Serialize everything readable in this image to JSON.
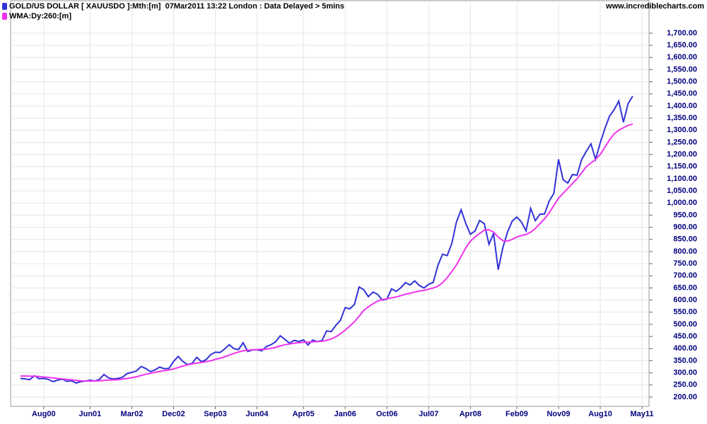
{
  "chart_data": {
    "type": "line",
    "source": "www.incrediblecharts.com",
    "categories": [
      null,
      null,
      null,
      null,
      null,
      "Aug00",
      null,
      null,
      null,
      null,
      null,
      null,
      null,
      null,
      null,
      "Jun01",
      null,
      null,
      null,
      null,
      null,
      null,
      null,
      null,
      "Mar02",
      null,
      null,
      null,
      null,
      null,
      null,
      null,
      null,
      "Dec02",
      null,
      null,
      null,
      null,
      null,
      null,
      null,
      null,
      "Sep03",
      null,
      null,
      null,
      null,
      null,
      null,
      null,
      null,
      "Jun04",
      null,
      null,
      null,
      null,
      null,
      null,
      null,
      null,
      null,
      "Apr05",
      null,
      null,
      null,
      null,
      null,
      null,
      null,
      null,
      "Jan06",
      null,
      null,
      null,
      null,
      null,
      null,
      null,
      null,
      "Oct06",
      null,
      null,
      null,
      null,
      null,
      null,
      null,
      null,
      "Jul07",
      null,
      null,
      null,
      null,
      null,
      null,
      null,
      null,
      "Apr08",
      null,
      null,
      null,
      null,
      null,
      null,
      null,
      null,
      null,
      "Feb09",
      null,
      null,
      null,
      null,
      null,
      null,
      null,
      null,
      "Nov09",
      null,
      null,
      null,
      null,
      null,
      null,
      null,
      null,
      "Aug10",
      null,
      null,
      null,
      null,
      null,
      null,
      null,
      null,
      "May11"
    ],
    "series": [
      {
        "name": "GOLD/US DOLLAR [ XAUUSDO ]:Mth:[m]  07Mar2011 13:22 London : Data Delayed > 5mins",
        "color": "#3232d8",
        "values": [
          277,
          275,
          272,
          288,
          276,
          277,
          273,
          264,
          270,
          274,
          265,
          267,
          258,
          264,
          266,
          270,
          266,
          273,
          293,
          279,
          275,
          277,
          282,
          297,
          302,
          308,
          326,
          318,
          305,
          312,
          324,
          317,
          318,
          347,
          368,
          347,
          334,
          339,
          364,
          346,
          354,
          375,
          385,
          384,
          398,
          416,
          400,
          396,
          424,
          388,
          394,
          395,
          391,
          408,
          416,
          428,
          453,
          438,
          422,
          434,
          429,
          436,
          415,
          435,
          429,
          433,
          473,
          470,
          496,
          517,
          569,
          564,
          582,
          654,
          643,
          614,
          633,
          624,
          600,
          604,
          646,
          636,
          651,
          672,
          662,
          679,
          660,
          650,
          665,
          673,
          743,
          789,
          783,
          834,
          922,
          972,
          916,
          871,
          885,
          928,
          915,
          830,
          875,
          725,
          816,
          880,
          925,
          942,
          922,
          885,
          978,
          927,
          954,
          955,
          1008,
          1040,
          1180,
          1096,
          1082,
          1117,
          1115,
          1180,
          1213,
          1244,
          1180,
          1248,
          1307,
          1358,
          1385,
          1420,
          1333,
          1410,
          1440,
          null,
          null
        ]
      },
      {
        "name": "WMA:Dy:260:[m]",
        "color": "#ee33ee",
        "values": [
          287,
          287,
          286,
          286,
          285,
          283,
          281,
          279,
          277,
          275,
          273,
          271,
          269,
          267,
          266,
          266,
          266,
          267,
          269,
          270,
          271,
          272,
          274,
          277,
          280,
          284,
          289,
          294,
          298,
          302,
          306,
          309,
          312,
          316,
          322,
          328,
          333,
          337,
          340,
          343,
          346,
          350,
          355,
          360,
          366,
          373,
          380,
          386,
          391,
          393,
          395,
          396,
          397,
          398,
          401,
          405,
          411,
          416,
          419,
          422,
          424,
          426,
          427,
          428,
          429,
          430,
          434,
          440,
          449,
          461,
          476,
          493,
          511,
          533,
          557,
          572,
          585,
          596,
          602,
          605,
          609,
          613,
          618,
          624,
          628,
          633,
          637,
          640,
          645,
          650,
          657,
          672,
          692,
          718,
          745,
          780,
          815,
          843,
          860,
          874,
          888,
          890,
          880,
          860,
          845,
          843,
          850,
          860,
          866,
          870,
          880,
          895,
          915,
          935,
          960,
          990,
          1020,
          1040,
          1060,
          1080,
          1100,
          1125,
          1150,
          1165,
          1180,
          1200,
          1230,
          1260,
          1285,
          1300,
          1310,
          1320,
          1325,
          null,
          null
        ]
      }
    ],
    "ylim": [
      162,
      1828
    ],
    "yticks": [
      {
        "value": 200,
        "label": "200.00"
      },
      {
        "value": 250,
        "label": "250.00"
      },
      {
        "value": 300,
        "label": "300.00"
      },
      {
        "value": 350,
        "label": "350.00"
      },
      {
        "value": 400,
        "label": "400.00"
      },
      {
        "value": 450,
        "label": "450.00"
      },
      {
        "value": 500,
        "label": "500.00"
      },
      {
        "value": 550,
        "label": "550.00"
      },
      {
        "value": 600,
        "label": "600.00"
      },
      {
        "value": 650,
        "label": "650.00"
      },
      {
        "value": 700,
        "label": "700.00"
      },
      {
        "value": 750,
        "label": "750.00"
      },
      {
        "value": 800,
        "label": "800.00"
      },
      {
        "value": 850,
        "label": "850.00"
      },
      {
        "value": 900,
        "label": "900.00"
      },
      {
        "value": 950,
        "label": "950.00"
      },
      {
        "value": 1000,
        "label": "1,000.00"
      },
      {
        "value": 1050,
        "label": "1,050.00"
      },
      {
        "value": 1100,
        "label": "1,100.00"
      },
      {
        "value": 1150,
        "label": "1,150.00"
      },
      {
        "value": 1200,
        "label": "1,200.00"
      },
      {
        "value": 1250,
        "label": "1,250.00"
      },
      {
        "value": 1300,
        "label": "1,300.00"
      },
      {
        "value": 1350,
        "label": "1,350.00"
      },
      {
        "value": 1400,
        "label": "1,400.00"
      },
      {
        "value": 1450,
        "label": "1,450.00"
      },
      {
        "value": 1500,
        "label": "1,500.00"
      },
      {
        "value": 1550,
        "label": "1,550.00"
      },
      {
        "value": 1600,
        "label": "1,600.00"
      },
      {
        "value": 1650,
        "label": "1,650.00"
      },
      {
        "value": 1700,
        "label": "1,700.00"
      }
    ],
    "grid": true
  }
}
